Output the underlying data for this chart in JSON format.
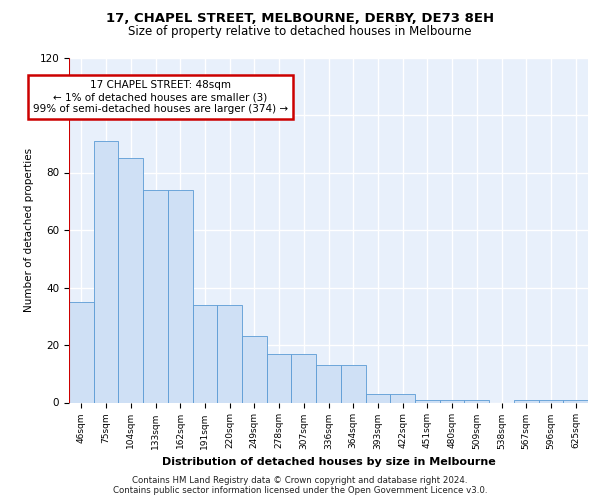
{
  "title1": "17, CHAPEL STREET, MELBOURNE, DERBY, DE73 8EH",
  "title2": "Size of property relative to detached houses in Melbourne",
  "xlabel": "Distribution of detached houses by size in Melbourne",
  "ylabel": "Number of detached properties",
  "categories": [
    "46sqm",
    "75sqm",
    "104sqm",
    "133sqm",
    "162sqm",
    "191sqm",
    "220sqm",
    "249sqm",
    "278sqm",
    "307sqm",
    "336sqm",
    "364sqm",
    "393sqm",
    "422sqm",
    "451sqm",
    "480sqm",
    "509sqm",
    "538sqm",
    "567sqm",
    "596sqm",
    "625sqm"
  ],
  "values": [
    35,
    91,
    85,
    74,
    74,
    34,
    34,
    23,
    17,
    17,
    13,
    13,
    3,
    3,
    1,
    1,
    1,
    0,
    1,
    1,
    1
  ],
  "bar_color": "#cfe0f5",
  "bar_edge_color": "#5b9bd5",
  "annotation_text": "17 CHAPEL STREET: 48sqm\n← 1% of detached houses are smaller (3)\n99% of semi-detached houses are larger (374) →",
  "annotation_box_color": "#ffffff",
  "annotation_box_edge_color": "#cc0000",
  "vline_color": "#cc0000",
  "ylim": [
    0,
    120
  ],
  "yticks": [
    0,
    20,
    40,
    60,
    80,
    100,
    120
  ],
  "background_color": "#e8f0fb",
  "grid_color": "#ffffff",
  "footer": "Contains HM Land Registry data © Crown copyright and database right 2024.\nContains public sector information licensed under the Open Government Licence v3.0."
}
